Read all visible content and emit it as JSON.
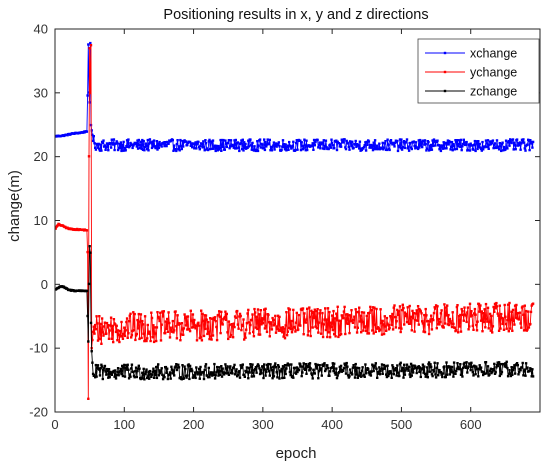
{
  "chart_data": {
    "type": "line",
    "title": "Positioning results in x, y and z directions",
    "xlabel": "epoch",
    "ylabel": "change(m)",
    "xlim": [
      0,
      700
    ],
    "ylim": [
      -20,
      40
    ],
    "xticks": [
      0,
      100,
      200,
      300,
      400,
      500,
      600
    ],
    "yticks": [
      -20,
      -10,
      0,
      10,
      20,
      30,
      40
    ],
    "grid": false,
    "legend_position": "top-right",
    "epoch_count": 690,
    "series": [
      {
        "name": "xchange",
        "color": "#0000ff",
        "keypoints": [
          [
            1,
            23.2
          ],
          [
            12,
            23.3
          ],
          [
            25,
            23.6
          ],
          [
            40,
            23.8
          ],
          [
            46,
            24.0
          ],
          [
            47,
            29.5
          ],
          [
            48,
            37.5
          ],
          [
            49,
            30.0
          ],
          [
            50,
            28.5
          ],
          [
            51,
            37.8
          ],
          [
            52,
            25.0
          ],
          [
            55,
            22.5
          ],
          [
            60,
            21.8
          ],
          [
            690,
            21.8
          ]
        ],
        "noise_after_epoch": 55,
        "noise_amplitude": 0.9
      },
      {
        "name": "ychange",
        "color": "#ff0000",
        "keypoints": [
          [
            1,
            8.8
          ],
          [
            5,
            9.4
          ],
          [
            10,
            9.2
          ],
          [
            20,
            8.7
          ],
          [
            30,
            8.6
          ],
          [
            46,
            8.5
          ],
          [
            47,
            5.0
          ],
          [
            48,
            -18.0
          ],
          [
            49,
            20.0
          ],
          [
            50,
            37.0
          ],
          [
            51,
            30.0
          ],
          [
            52,
            37.5
          ],
          [
            53,
            -10.0
          ],
          [
            55,
            -7.5
          ],
          [
            60,
            -7.0
          ],
          [
            100,
            -6.8
          ],
          [
            690,
            -5.0
          ]
        ],
        "noise_after_epoch": 55,
        "noise_amplitude": 2.4
      },
      {
        "name": "zchange",
        "color": "#000000",
        "keypoints": [
          [
            1,
            -0.8
          ],
          [
            8,
            -0.3
          ],
          [
            12,
            -0.4
          ],
          [
            20,
            -0.9
          ],
          [
            30,
            -1.0
          ],
          [
            46,
            -1.0
          ],
          [
            47,
            -5.0
          ],
          [
            48,
            -9.0
          ],
          [
            49,
            0.0
          ],
          [
            50,
            6.0
          ],
          [
            51,
            5.0
          ],
          [
            52,
            -6.0
          ],
          [
            53,
            -10.5
          ],
          [
            55,
            -14.0
          ],
          [
            60,
            -13.8
          ],
          [
            690,
            -13.3
          ]
        ],
        "noise_after_epoch": 55,
        "noise_amplitude": 1.2
      }
    ]
  }
}
